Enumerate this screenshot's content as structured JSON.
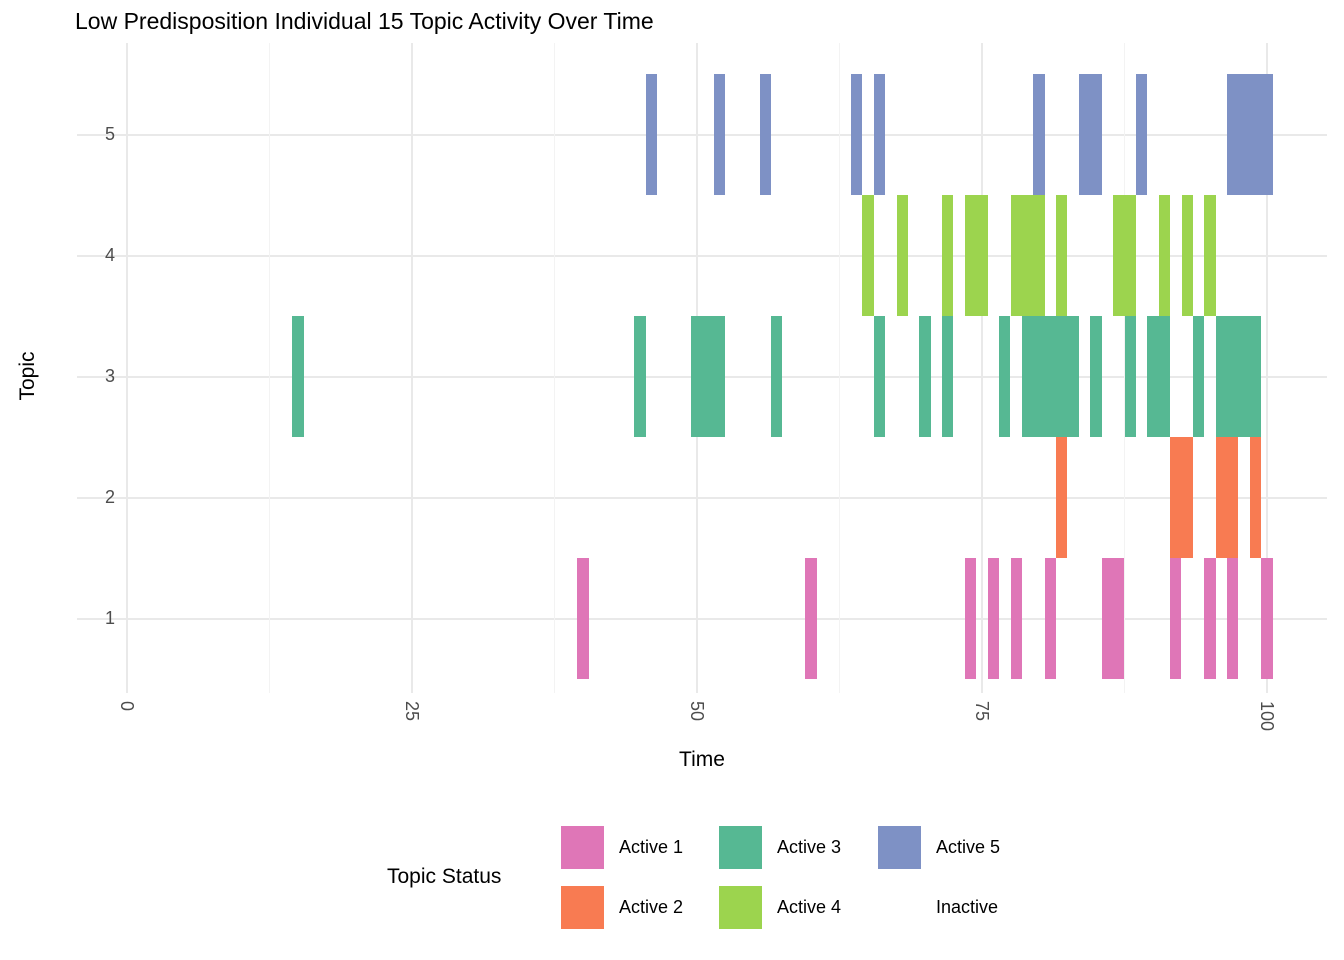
{
  "title": "Low Predisposition Individual 15 Topic Activity Over Time",
  "chart_data": {
    "type": "heatmap",
    "title": "Low Predisposition Individual 15 Topic Activity Over Time",
    "xlabel": "Time",
    "ylabel": "Topic",
    "x_ticks": [
      0,
      25,
      50,
      75,
      100
    ],
    "x_minor_ticks": [
      12.5,
      37.5,
      62.5,
      87.5
    ],
    "y_ticks": [
      1,
      2,
      3,
      4,
      5
    ],
    "xlim": [
      -4.4,
      105.5
    ],
    "ylim": [
      0.25,
      5.75
    ],
    "grid": true,
    "legend_position": "bottom",
    "tile_width": 1,
    "tile_height": 1,
    "series": [
      {
        "topic": 5,
        "status": "Active 5",
        "active_times": [
          46,
          52,
          56,
          64,
          66,
          80,
          84,
          85,
          89,
          97,
          98,
          99,
          100
        ]
      },
      {
        "topic": 4,
        "status": "Active 4",
        "active_times": [
          65,
          68,
          72,
          74,
          75,
          78,
          79,
          80,
          82,
          87,
          88,
          91,
          93,
          95
        ]
      },
      {
        "topic": 3,
        "status": "Active 3",
        "active_times": [
          15,
          45,
          50,
          51,
          52,
          57,
          66,
          70,
          72,
          77,
          79,
          80,
          81,
          82,
          83,
          85,
          88,
          90,
          91,
          94,
          96,
          97,
          98,
          99
        ]
      },
      {
        "topic": 2,
        "status": "Active 2",
        "active_times": [
          82,
          92,
          93,
          96,
          97,
          99
        ]
      },
      {
        "topic": 1,
        "status": "Active 1",
        "active_times": [
          40,
          60,
          74,
          76,
          78,
          81,
          86,
          87,
          92,
          95,
          97,
          100
        ]
      }
    ],
    "status_colors": {
      "Active 1": "#DF76B7",
      "Active 2": "#F87B52",
      "Active 3": "#56B893",
      "Active 4": "#9CD44E",
      "Active 5": "#7E91C5",
      "Inactive": "#FFFFFF"
    },
    "legend": {
      "title": "Topic Status",
      "entries": [
        {
          "label": "Active 1",
          "color": "#DF76B7"
        },
        {
          "label": "Active 2",
          "color": "#F87B52"
        },
        {
          "label": "Active 3",
          "color": "#56B893"
        },
        {
          "label": "Active 4",
          "color": "#9CD44E"
        },
        {
          "label": "Active 5",
          "color": "#7E91C5"
        },
        {
          "label": "Inactive",
          "color": "#FFFFFF"
        }
      ]
    },
    "grid_colors": {
      "major": "#E9E9E9",
      "minor": "#F3F3F3"
    },
    "tick_label_color": "#4D4D4D"
  }
}
